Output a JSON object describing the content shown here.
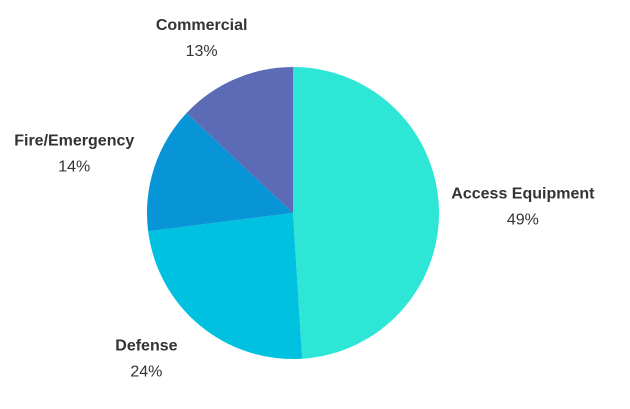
{
  "chart_data": {
    "type": "pie",
    "categories": [
      "Access Equipment",
      "Defense",
      "Fire/Emergency",
      "Commercial"
    ],
    "values": [
      49,
      24,
      14,
      13
    ],
    "value_labels": [
      "49%",
      "24%",
      "14%",
      "13%"
    ],
    "colors": [
      "#2ee6d6",
      "#00c2e0",
      "#0795d8",
      "#5b6bb5"
    ]
  }
}
